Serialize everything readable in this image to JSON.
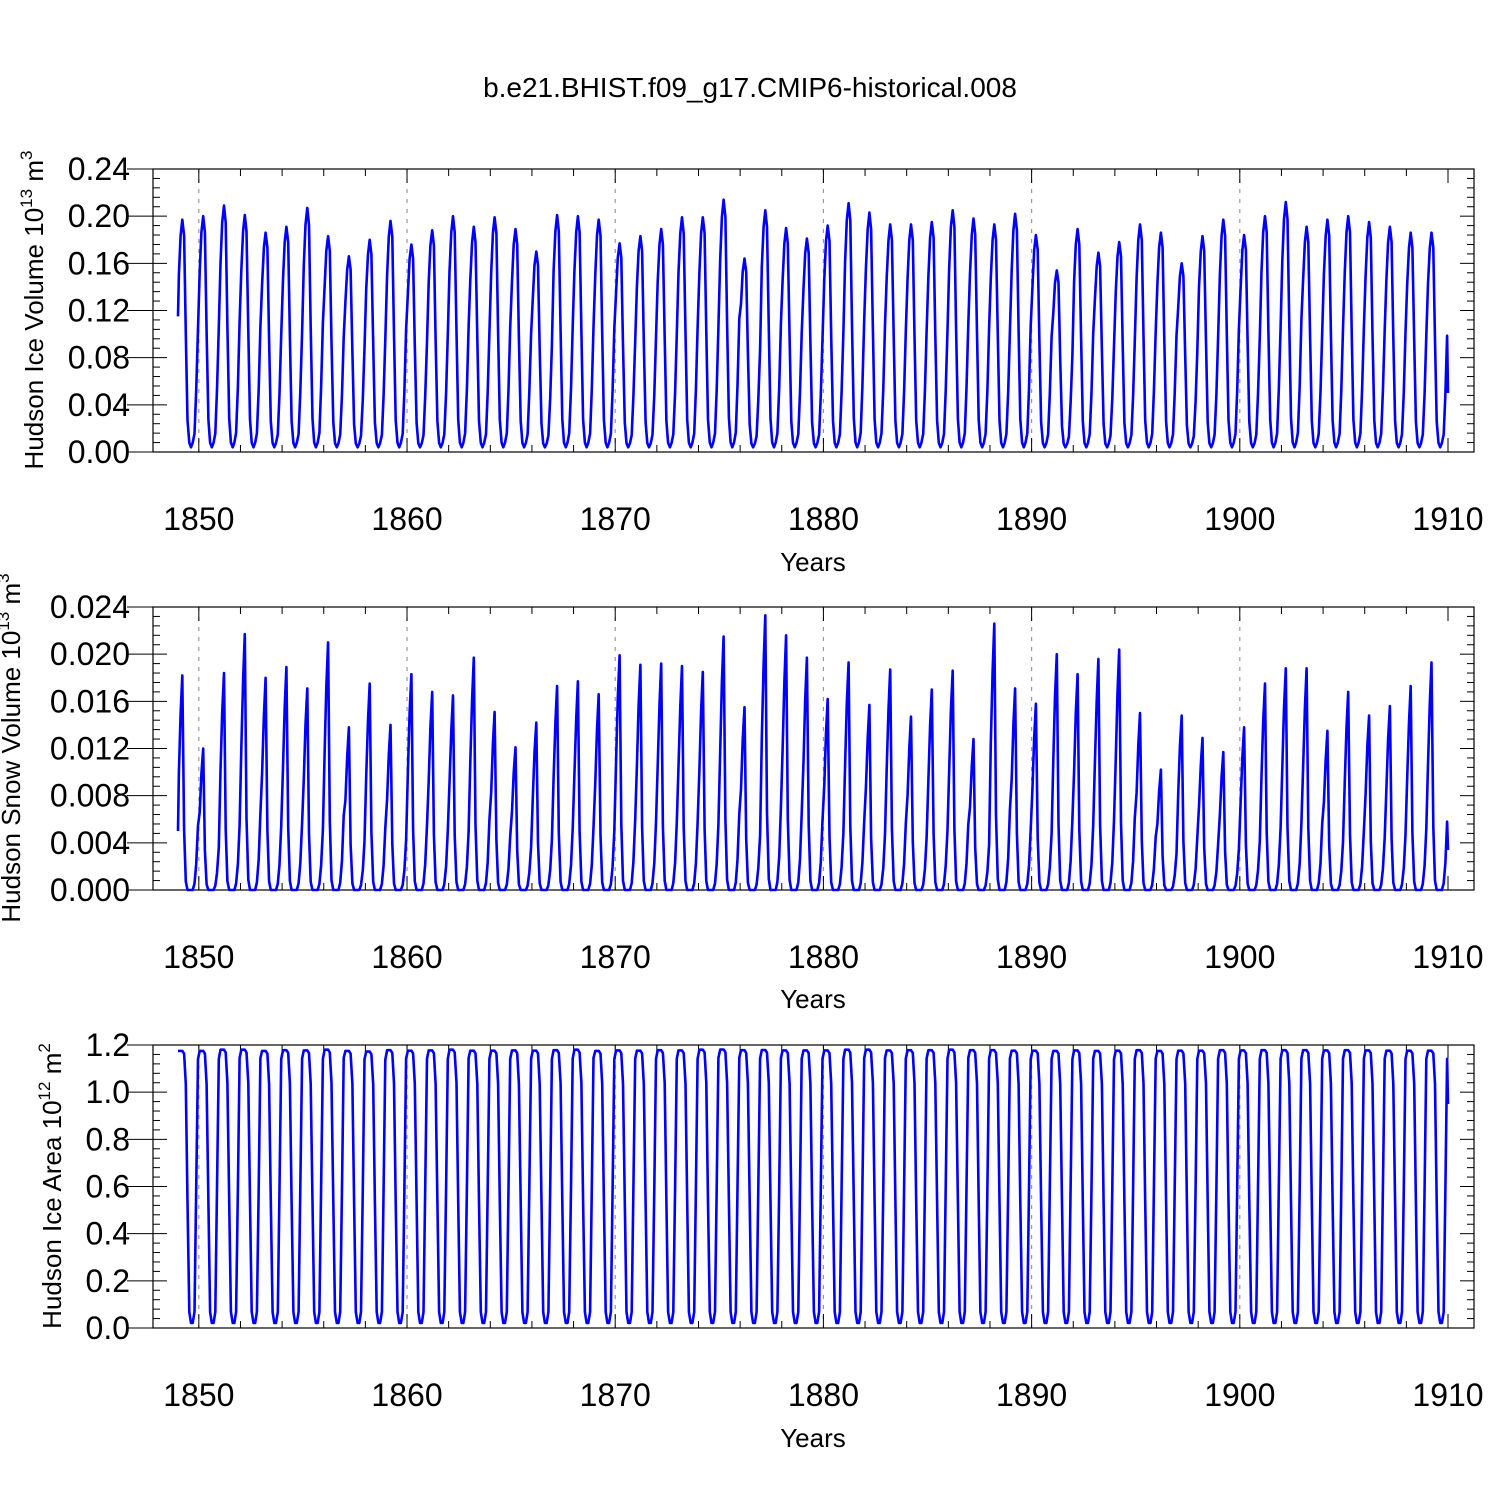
{
  "figure": {
    "title": "b.e21.BHIST.f09_g17.CMIP6-historical.008"
  },
  "colors": {
    "series": "#0000ff",
    "axes": "#000000",
    "grid": "#999999"
  },
  "chart_data": [
    {
      "type": "line",
      "name": "ice-volume",
      "ylabel_main": "Hudson Ice Volume 10",
      "ylabel_exp": "13",
      "ylabel_unit": " m",
      "ylabel_unit_exp": "3",
      "xlabel": "Years",
      "xlim": [
        1849,
        1910
      ],
      "ylim": [
        0,
        0.24
      ],
      "xticks": [
        1850,
        1860,
        1870,
        1880,
        1890,
        1900,
        1910
      ],
      "xtick_labels": [
        "1850",
        "1860",
        "1870",
        "1880",
        "1890",
        "1900",
        "1910"
      ],
      "yticks": [
        0,
        0.04,
        0.08,
        0.12,
        0.16,
        0.2,
        0.24
      ],
      "ytick_labels": [
        "0.00",
        "0.04",
        "0.08",
        "0.12",
        "0.16",
        "0.20",
        "0.24"
      ],
      "grid_x": [
        1850,
        1860,
        1870,
        1880,
        1890,
        1900
      ],
      "series_name": "Hudson Ice Volume",
      "start_value": 0.115,
      "end_value": 0.05,
      "seasonal_shape": "volume",
      "annual_min": 0.004,
      "annual_peaks": [
        0.197,
        0.2,
        0.209,
        0.201,
        0.186,
        0.191,
        0.207,
        0.183,
        0.166,
        0.18,
        0.196,
        0.176,
        0.188,
        0.2,
        0.191,
        0.199,
        0.189,
        0.17,
        0.201,
        0.2,
        0.197,
        0.177,
        0.183,
        0.189,
        0.199,
        0.199,
        0.214,
        0.164,
        0.205,
        0.19,
        0.181,
        0.192,
        0.211,
        0.203,
        0.193,
        0.193,
        0.195,
        0.205,
        0.198,
        0.193,
        0.202,
        0.184,
        0.154,
        0.189,
        0.169,
        0.178,
        0.193,
        0.186,
        0.16,
        0.183,
        0.197,
        0.184,
        0.2,
        0.212,
        0.191,
        0.197,
        0.2,
        0.195,
        0.191,
        0.186
      ]
    },
    {
      "type": "line",
      "name": "snow-volume",
      "ylabel_main": "Hudson Snow Volume 10",
      "ylabel_exp": "13",
      "ylabel_unit": " m",
      "ylabel_unit_exp": "3",
      "xlabel": "Years",
      "xlim": [
        1849,
        1910
      ],
      "ylim": [
        0,
        0.024
      ],
      "xticks": [
        1850,
        1860,
        1870,
        1880,
        1890,
        1900,
        1910
      ],
      "xtick_labels": [
        "1850",
        "1860",
        "1870",
        "1880",
        "1890",
        "1900",
        "1910"
      ],
      "yticks": [
        0,
        0.004,
        0.008,
        0.012,
        0.016,
        0.02,
        0.024
      ],
      "ytick_labels": [
        "0.000",
        "0.004",
        "0.008",
        "0.012",
        "0.016",
        "0.020",
        "0.024"
      ],
      "grid_x": [
        1850,
        1860,
        1870,
        1880,
        1890,
        1900
      ],
      "series_name": "Hudson Snow Volume",
      "start_value": 0.005,
      "end_value": 0.0034,
      "seasonal_shape": "snow",
      "annual_min": 0.0,
      "annual_peaks": [
        0.0182,
        0.012,
        0.0184,
        0.0217,
        0.018,
        0.0189,
        0.0171,
        0.021,
        0.0138,
        0.0175,
        0.014,
        0.0183,
        0.0168,
        0.0165,
        0.0197,
        0.0151,
        0.0121,
        0.0142,
        0.0173,
        0.0177,
        0.0166,
        0.0199,
        0.0191,
        0.0192,
        0.019,
        0.0185,
        0.0215,
        0.0155,
        0.0233,
        0.0216,
        0.0197,
        0.0162,
        0.0193,
        0.0157,
        0.0187,
        0.0147,
        0.017,
        0.0186,
        0.0128,
        0.0226,
        0.0171,
        0.0158,
        0.02,
        0.0183,
        0.0196,
        0.0204,
        0.015,
        0.0102,
        0.0148,
        0.0129,
        0.0117,
        0.0138,
        0.0175,
        0.0188,
        0.0188,
        0.0135,
        0.0168,
        0.0148,
        0.0156,
        0.0173,
        0.0193
      ]
    },
    {
      "type": "line",
      "name": "ice-area",
      "ylabel_main": "Hudson Ice Area 10",
      "ylabel_exp": "12",
      "ylabel_unit": " m",
      "ylabel_unit_exp": "2",
      "xlabel": "Years",
      "xlim": [
        1849,
        1910
      ],
      "ylim": [
        0,
        1.2
      ],
      "xticks": [
        1850,
        1860,
        1870,
        1880,
        1890,
        1900,
        1910
      ],
      "xtick_labels": [
        "1850",
        "1860",
        "1870",
        "1880",
        "1890",
        "1900",
        "1910"
      ],
      "yticks": [
        0,
        0.2,
        0.4,
        0.6,
        0.8,
        1.0,
        1.2
      ],
      "ytick_labels": [
        "0.0",
        "0.2",
        "0.4",
        "0.6",
        "0.8",
        "1.0",
        "1.2"
      ],
      "grid_x": [
        1850,
        1860,
        1870,
        1880,
        1890,
        1900
      ],
      "series_name": "Hudson Ice Area",
      "start_value": 1.175,
      "end_value": 0.95,
      "seasonal_shape": "area",
      "annual_min": 0.01,
      "annual_peaks": [
        1.175,
        1.175,
        1.18,
        1.18,
        1.175,
        1.178,
        1.177,
        1.18,
        1.175,
        1.172,
        1.178,
        1.176,
        1.177,
        1.18,
        1.176,
        1.176,
        1.177,
        1.176,
        1.178,
        1.18,
        1.175,
        1.177,
        1.176,
        1.178,
        1.177,
        1.18,
        1.181,
        1.178,
        1.179,
        1.177,
        1.177,
        1.177,
        1.18,
        1.18,
        1.177,
        1.178,
        1.178,
        1.18,
        1.178,
        1.178,
        1.176,
        1.176,
        1.175,
        1.177,
        1.175,
        1.176,
        1.178,
        1.175,
        1.176,
        1.176,
        1.178,
        1.177,
        1.178,
        1.178,
        1.178,
        1.177,
        1.178,
        1.177,
        1.176,
        1.176
      ]
    }
  ]
}
